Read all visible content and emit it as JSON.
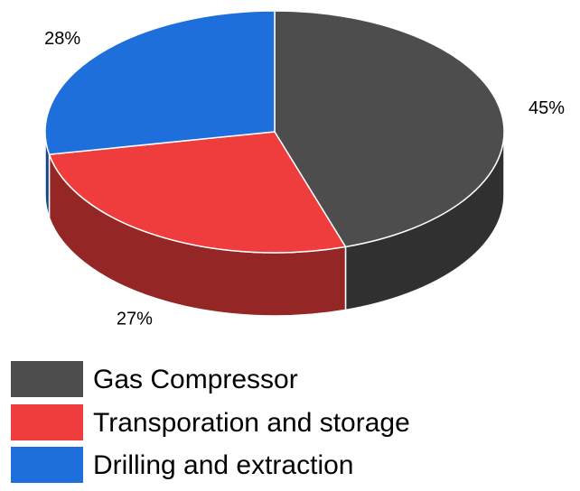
{
  "chart_data": {
    "type": "pie",
    "categories": [
      "Gas Compressor",
      "Transporation and storage",
      "Drilling and extraction"
    ],
    "values": [
      45,
      27,
      28
    ],
    "value_labels": [
      "45%",
      "27%",
      "28%"
    ],
    "colors": [
      "#4d4d4d",
      "#ef3d3d",
      "#1e6fdc"
    ]
  }
}
